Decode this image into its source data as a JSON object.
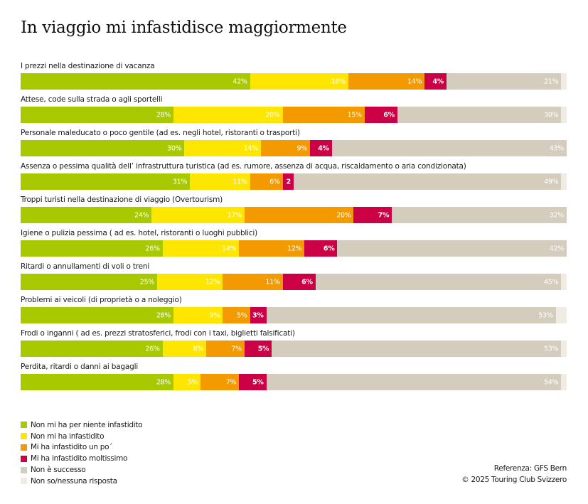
{
  "chart_data": {
    "type": "bar",
    "orientation": "horizontal",
    "stacked": true,
    "title": "In viaggio mi infastidisce maggiormente",
    "xlabel": "",
    "ylabel": "",
    "xlim": [
      0,
      100
    ],
    "grid": false,
    "legend_position": "bottom-left",
    "unit": "%",
    "categories": [
      "I prezzi nella destinazione di vacanza",
      "Attese, code sulla strada o agli sportelli",
      "Personale maleducato o poco gentile (ad es. negli hotel, ristoranti o trasporti)",
      "Assenza o pessima qualità dell’ infrastruttura turistica (ad es. rumore, assenza di acqua, riscaldamento o aria condizionata)",
      "Troppi turisti nella destinazione di viaggio (Overtourism)",
      "Igiene o pulizia pessima ( ad es. hotel, ristoranti o luoghi pubblici)",
      "Ritardi o annullamenti di voli o treni",
      "Problemi ai veicoli (di proprietà o a noleggio)",
      "Frodi o inganni ( ad es. prezzi stratosferici, frodi con i taxi, biglietti falsificati)",
      "Perdita, ritardi o danni ai bagagli"
    ],
    "series": [
      {
        "name": "Non mi ha per niente infastidito",
        "color": "#a8c800",
        "values": [
          42,
          28,
          30,
          31,
          24,
          26,
          25,
          28,
          26,
          28
        ],
        "labels": [
          "42%",
          "28%",
          "30%",
          "31%",
          "24%",
          "26%",
          "25%",
          "28%",
          "26%",
          "28%"
        ]
      },
      {
        "name": "Non mi ha infastidito",
        "color": "#ffe600",
        "values": [
          18,
          20,
          14,
          11,
          17,
          14,
          12,
          9,
          8,
          5
        ],
        "labels": [
          "18%",
          "20%",
          "14%",
          "11%",
          "17%",
          "14%",
          "12%",
          "9%",
          "8%",
          "5%"
        ]
      },
      {
        "name": "Mi ha infastidito un po´",
        "color": "#f39a00",
        "values": [
          14,
          15,
          9,
          6,
          20,
          12,
          11,
          5,
          7,
          7
        ],
        "labels": [
          "14%",
          "15%",
          "9%",
          "6%",
          "20%",
          "12%",
          "11%",
          "5%",
          "7%",
          "7%"
        ]
      },
      {
        "name": "Mi ha infastidito moltissimo",
        "color": "#cc0044",
        "values": [
          4,
          6,
          4,
          2,
          7,
          6,
          6,
          3,
          5,
          5
        ],
        "labels": [
          "4%",
          "6%",
          "4%",
          "2",
          "7%",
          "6%",
          "6%",
          "3%",
          "5%",
          "5%"
        ]
      },
      {
        "name": "Non è successo",
        "color": "#d4ccbc",
        "values": [
          21,
          30,
          43,
          49,
          32,
          42,
          45,
          53,
          53,
          54
        ],
        "labels": [
          "21%",
          "30%",
          "43%",
          "49%",
          "32%",
          "42%",
          "45%",
          "53%",
          "53%",
          "54%"
        ]
      },
      {
        "name": "Non so/nessuna risposta",
        "color": "#f0ece4",
        "values": [
          1,
          1,
          0,
          1,
          0,
          0,
          1,
          2,
          1,
          1
        ],
        "labels": [
          "",
          "",
          "",
          "",
          "",
          "",
          "",
          "",
          "",
          ""
        ]
      }
    ]
  },
  "footer": {
    "reference": "Referenza: GFS Bern",
    "copyright": "© 2025 Touring Club Svizzero"
  }
}
